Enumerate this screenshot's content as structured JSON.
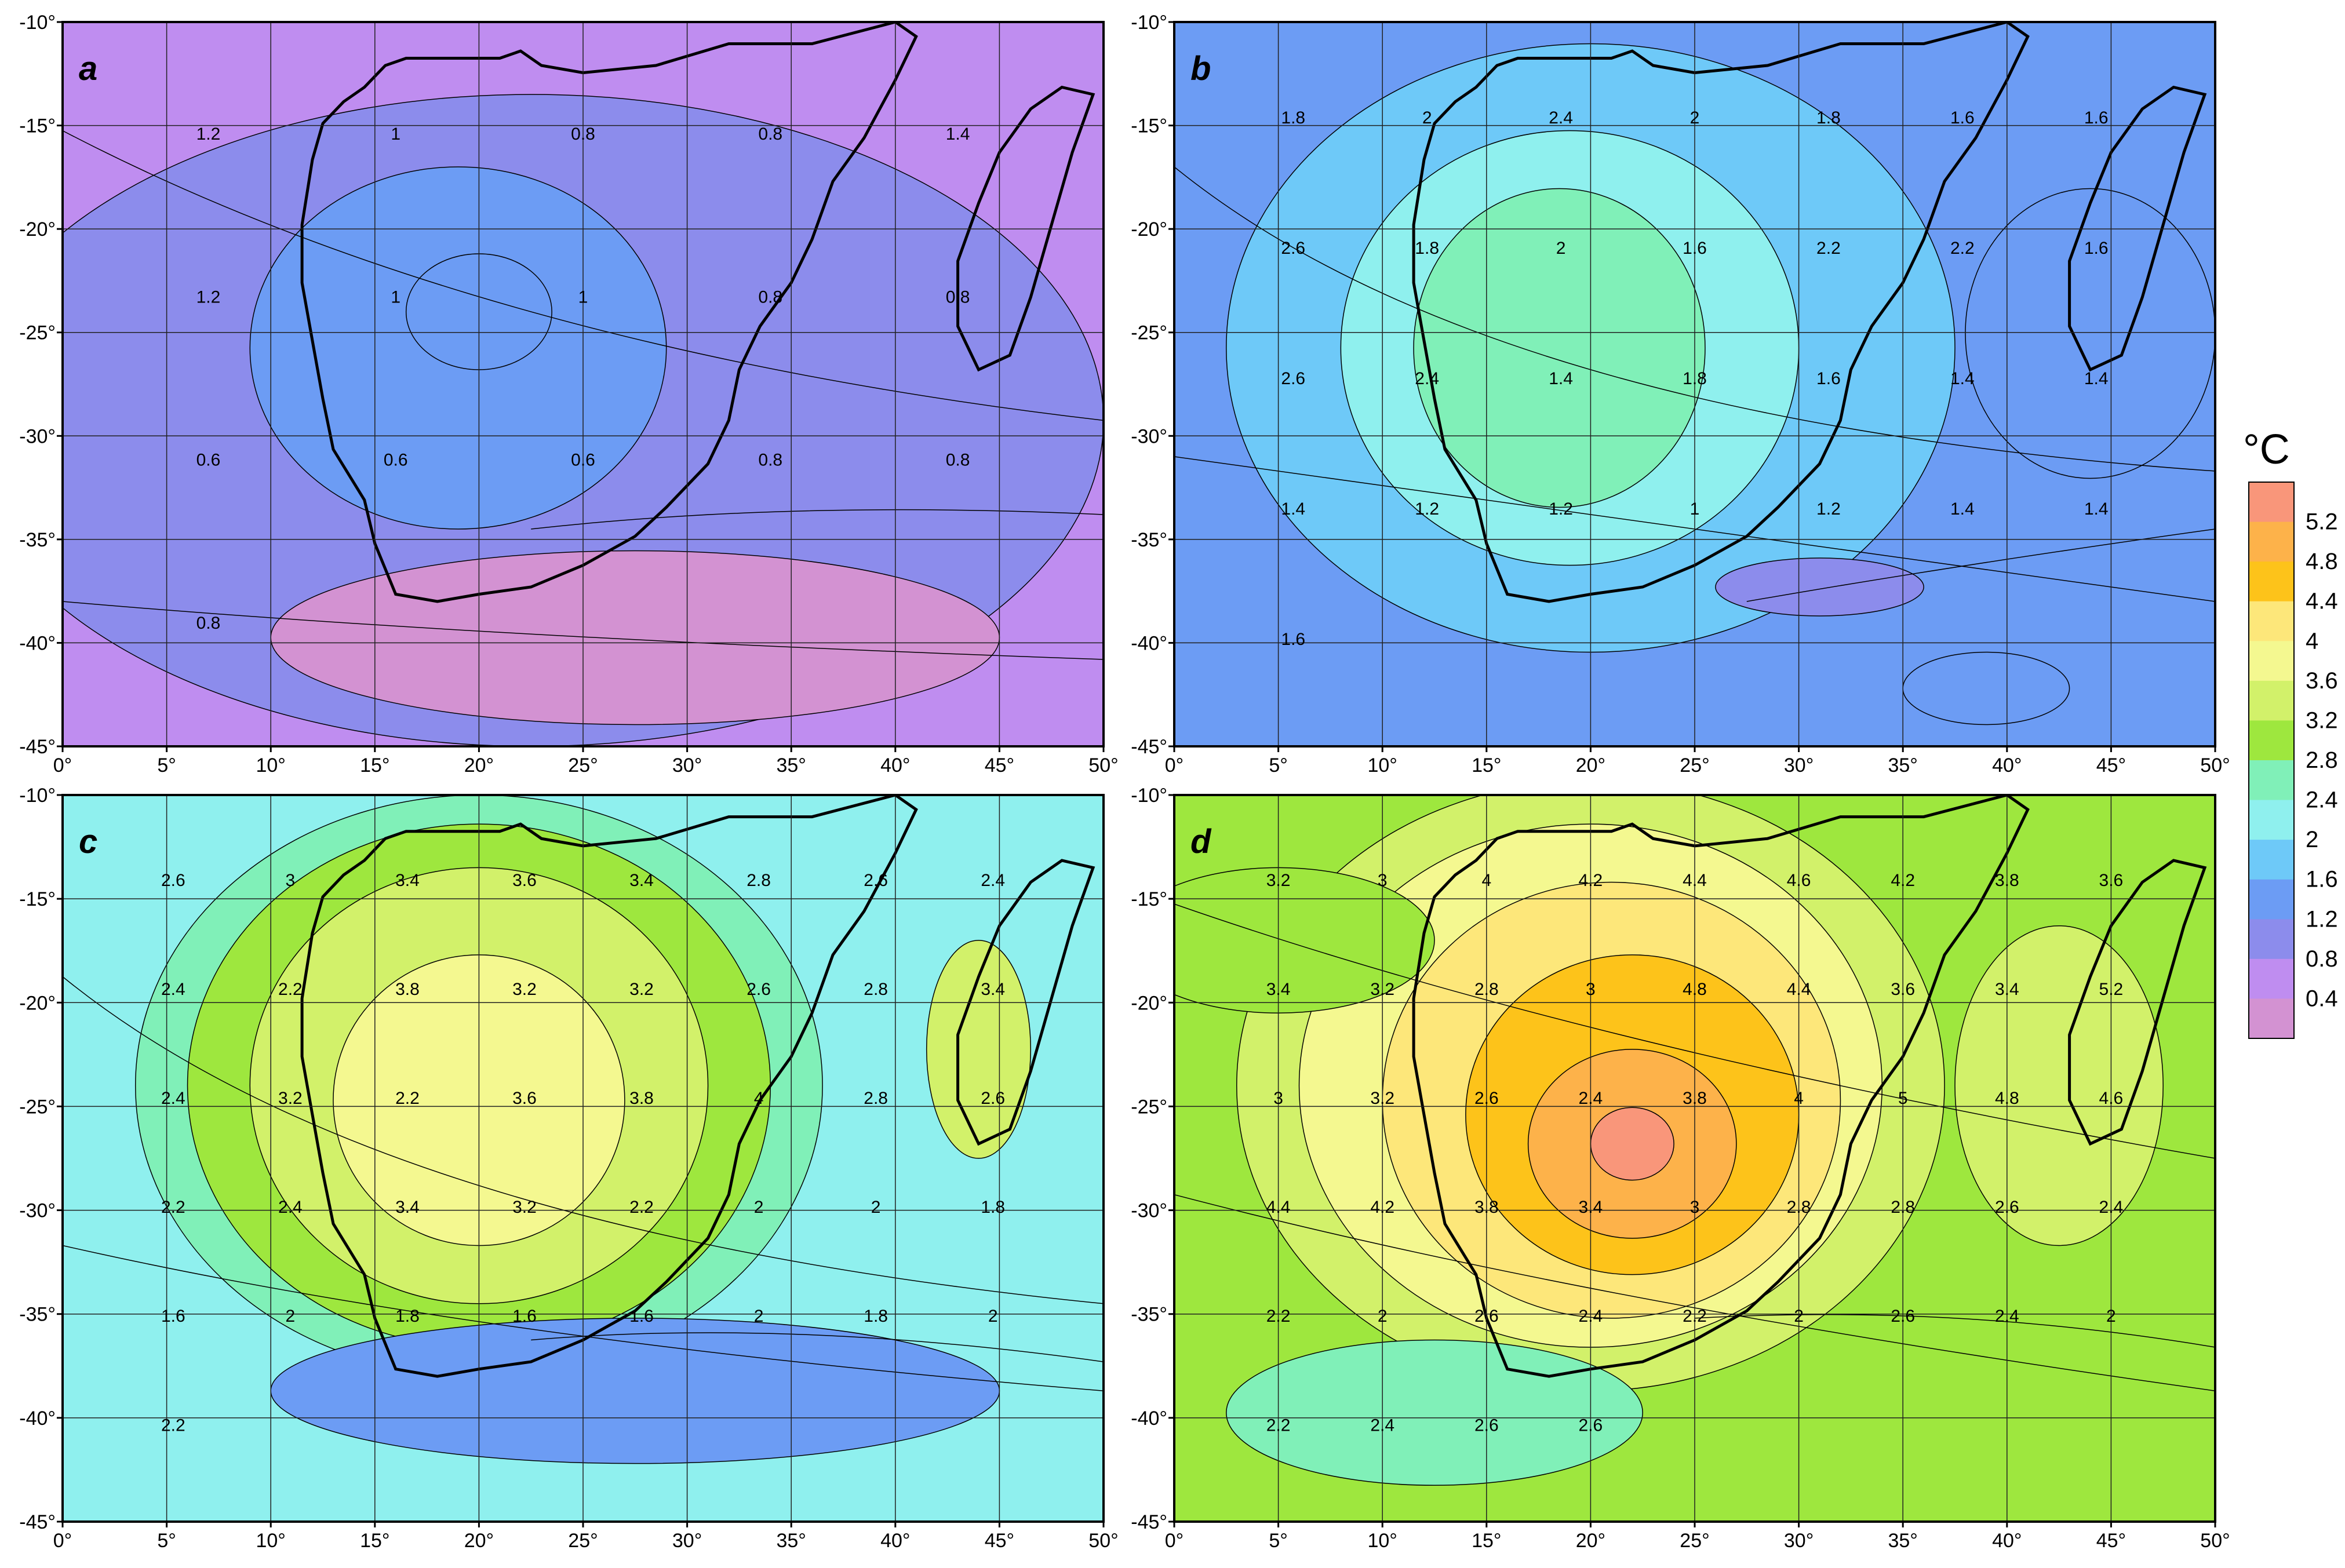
{
  "figure": {
    "panels": [
      {
        "id": "a",
        "label": "a",
        "contour_labels": [
          "1.2",
          "1",
          "0.8",
          "0.8",
          "1.4",
          "1.2",
          "1",
          "1",
          "0.8",
          "0.8",
          "0.6",
          "0.6",
          "0.6",
          "0.8",
          "0.8",
          "0.8"
        ]
      },
      {
        "id": "b",
        "label": "b",
        "contour_labels": [
          "1.8",
          "2",
          "2.4",
          "2",
          "1.8",
          "1.6",
          "1.6",
          "2.6",
          "1.8",
          "2",
          "1.6",
          "2.2",
          "2.2",
          "1.6",
          "2.6",
          "2.4",
          "1.4",
          "1.8",
          "1.6",
          "1.4",
          "1.4",
          "1.4",
          "1.2",
          "1.2",
          "1",
          "1.2",
          "1.4",
          "1.4",
          "1.6"
        ]
      },
      {
        "id": "c",
        "label": "c",
        "contour_labels": [
          "2.6",
          "3",
          "3.4",
          "3.6",
          "3.4",
          "2.8",
          "2.6",
          "2.4",
          "2.4",
          "2.2",
          "3.8",
          "3.2",
          "3.2",
          "2.6",
          "2.8",
          "3.4",
          "2.4",
          "3.2",
          "2.2",
          "3.6",
          "3.8",
          "4",
          "2.8",
          "2.6",
          "2.2",
          "2.4",
          "3.4",
          "3.2",
          "2.2",
          "2",
          "2",
          "1.8",
          "1.6",
          "2",
          "1.8",
          "1.6",
          "1.6",
          "2",
          "1.8",
          "2",
          "2.2"
        ]
      },
      {
        "id": "d",
        "label": "d",
        "contour_labels": [
          "3.2",
          "3",
          "4",
          "4.2",
          "4.4",
          "4.6",
          "4.2",
          "3.8",
          "3.6",
          "3.4",
          "3.2",
          "2.8",
          "3",
          "4.8",
          "4.4",
          "3.6",
          "3.4",
          "5.2",
          "3",
          "3.2",
          "2.6",
          "2.4",
          "3.8",
          "4",
          "5",
          "4.8",
          "4.6",
          "4.4",
          "4.2",
          "3.8",
          "3.4",
          "3",
          "2.8",
          "2.8",
          "2.6",
          "2.4",
          "2.2",
          "2",
          "2.6",
          "2.4",
          "2.2",
          "2",
          "2.6",
          "2.4",
          "2",
          "2.2",
          "2.4",
          "2.6",
          "2.6"
        ]
      }
    ],
    "y_axis_labels": [
      "-10°",
      "-15°",
      "-20°",
      "-25°",
      "-30°",
      "-35°",
      "-40°",
      "-45°"
    ],
    "x_axis_labels": [
      "0°",
      "5°",
      "10°",
      "15°",
      "20°",
      "25°",
      "30°",
      "35°",
      "40°",
      "45°",
      "50°"
    ],
    "colorbar": {
      "unit": "°C",
      "tick_labels": [
        "5.2",
        "4.8",
        "4.4",
        "4",
        "3.6",
        "3.2",
        "2.8",
        "2.4",
        "2",
        "1.6",
        "1.2",
        "0.8",
        "0.4"
      ],
      "colors": [
        "#f9967a",
        "#fdb24a",
        "#fdc31a",
        "#fde77a",
        "#f4f890",
        "#d2f16a",
        "#9ee73e",
        "#80f0b8",
        "#8ff0ee",
        "#6ec9f8",
        "#6c9cf4",
        "#8c8cec",
        "#bf8df0",
        "#d392d2"
      ]
    },
    "colors": {
      "line": "#000000",
      "grid": "#202020",
      "background": "#ffffff"
    }
  }
}
